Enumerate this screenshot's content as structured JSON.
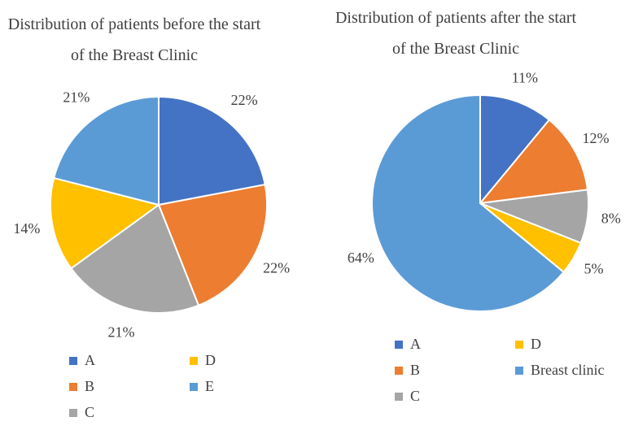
{
  "chart_data": [
    {
      "type": "pie",
      "title": "Distribution of patients before the start of the Breast Clinic",
      "categories": [
        "A",
        "B",
        "C",
        "D",
        "E"
      ],
      "values": [
        22,
        22,
        21,
        14,
        21
      ],
      "value_labels": [
        "22%",
        "22%",
        "21%",
        "14%",
        "21%"
      ],
      "colors": [
        "#4472c4",
        "#ed7d31",
        "#a5a5a5",
        "#ffc000",
        "#5b9bd5"
      ],
      "legend": "bottom"
    },
    {
      "type": "pie",
      "title": "Distribution of patients after the start of the Breast Clinic",
      "categories": [
        "A",
        "B",
        "C",
        "D",
        "Breast clinic"
      ],
      "values": [
        11,
        12,
        8,
        5,
        64
      ],
      "value_labels": [
        "11%",
        "12%",
        "8%",
        "5%",
        "64%"
      ],
      "colors": [
        "#4472c4",
        "#ed7d31",
        "#a5a5a5",
        "#ffc000",
        "#5b9bd5"
      ],
      "legend": "bottom"
    }
  ]
}
